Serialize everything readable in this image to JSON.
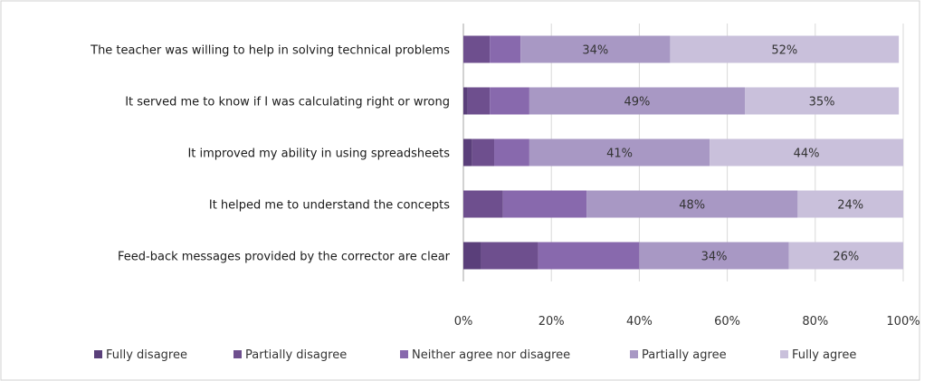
{
  "chart_data": {
    "type": "bar",
    "orientation": "horizontal",
    "stacked": "percent",
    "categories": [
      "The teacher was willing to help in solving technical problems",
      "It served me to know if I was calculating right or wrong",
      "It improved my ability in using spreadsheets",
      "It helped me to understand the concepts",
      "Feed-back messages provided by the corrector are clear"
    ],
    "series": [
      {
        "name": "Fully disagree",
        "values": [
          0,
          1,
          2,
          0,
          4
        ],
        "color": "#5a3f7a"
      },
      {
        "name": "Partially disagree",
        "values": [
          6,
          5,
          5,
          9,
          13
        ],
        "color": "#6e4f8e"
      },
      {
        "name": "Neither agree nor disagree",
        "values": [
          7,
          9,
          8,
          19,
          23
        ],
        "color": "#8869ad"
      },
      {
        "name": "Partially agree",
        "values": [
          34,
          49,
          41,
          48,
          34
        ],
        "color": "#a898c4"
      },
      {
        "name": "Fully agree",
        "values": [
          52,
          35,
          44,
          24,
          26
        ],
        "color": "#c9c0db"
      }
    ],
    "data_labels": [
      [
        null,
        null,
        null,
        "34%",
        "52%"
      ],
      [
        null,
        null,
        null,
        "49%",
        "35%"
      ],
      [
        null,
        null,
        null,
        "41%",
        "44%"
      ],
      [
        null,
        null,
        null,
        "48%",
        "24%"
      ],
      [
        null,
        null,
        null,
        "34%",
        "26%"
      ]
    ],
    "xlim": [
      0,
      100
    ],
    "xticks": [
      "0%",
      "20%",
      "40%",
      "60%",
      "80%",
      "100%"
    ],
    "grid": true,
    "legend": "bottom",
    "title": "",
    "xlabel": "",
    "ylabel": ""
  }
}
